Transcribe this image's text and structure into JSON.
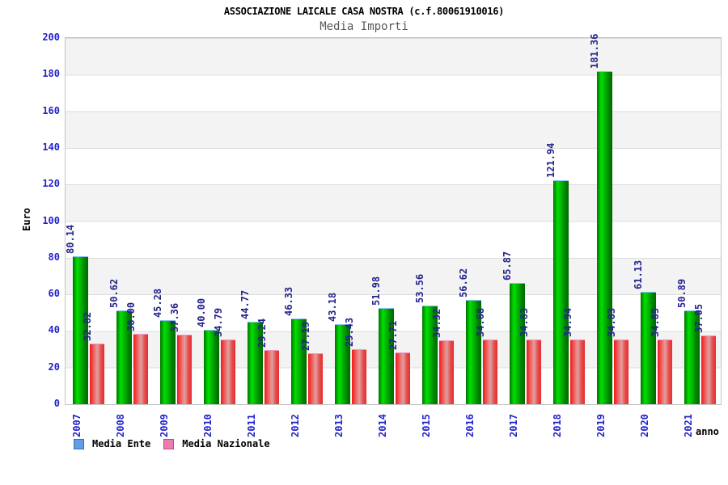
{
  "chart_data": {
    "type": "bar",
    "title": "ASSOCIAZIONE LAICALE CASA NOSTRA (c.f.80061910016)",
    "subtitle": "Media Importi",
    "ylabel": "Euro",
    "xlabel": "anno",
    "categories": [
      "2007",
      "2008",
      "2009",
      "2010",
      "2011",
      "2012",
      "2013",
      "2014",
      "2015",
      "2016",
      "2017",
      "2018",
      "2019",
      "2020",
      "2021"
    ],
    "series": [
      {
        "name": "Media Ente",
        "values": [
          80.14,
          50.62,
          45.28,
          40.0,
          44.77,
          46.33,
          43.18,
          51.98,
          53.56,
          56.62,
          65.87,
          121.94,
          181.36,
          61.13,
          50.89
        ]
      },
      {
        "name": "Media Nazionale",
        "values": [
          32.82,
          38.0,
          37.36,
          34.79,
          29.24,
          27.19,
          29.43,
          27.71,
          34.32,
          34.68,
          34.83,
          34.94,
          34.83,
          34.85,
          37.05
        ]
      }
    ],
    "ylim": [
      0,
      200
    ],
    "ytick_step": 20,
    "grid": "horizontal gridlines with alternating gray/white bands",
    "legend_position": "bottom-left",
    "value_labels": "rotated 90deg above each bar, two decimals",
    "colors": {
      "bar_ente_gradient": [
        "#007300",
        "#00e000",
        "#006900"
      ],
      "bar_nazionale_gradient": [
        "#f21818",
        "#dda0a0",
        "#e32e2e"
      ],
      "bar_ente_cap": "#8fc0f0",
      "bar_nazionale_cap": "#f593c8",
      "legend_ente_swatch": "#5f9ee8",
      "legend_nazionale_swatch": "#ee7bb0",
      "axis_tick_text": "#2222cc",
      "value_label_text": "#24248e",
      "subtitle_text": "#5a5a5a",
      "band_gray": "#f3f3f3",
      "gridline": "#dcdcdc"
    }
  }
}
